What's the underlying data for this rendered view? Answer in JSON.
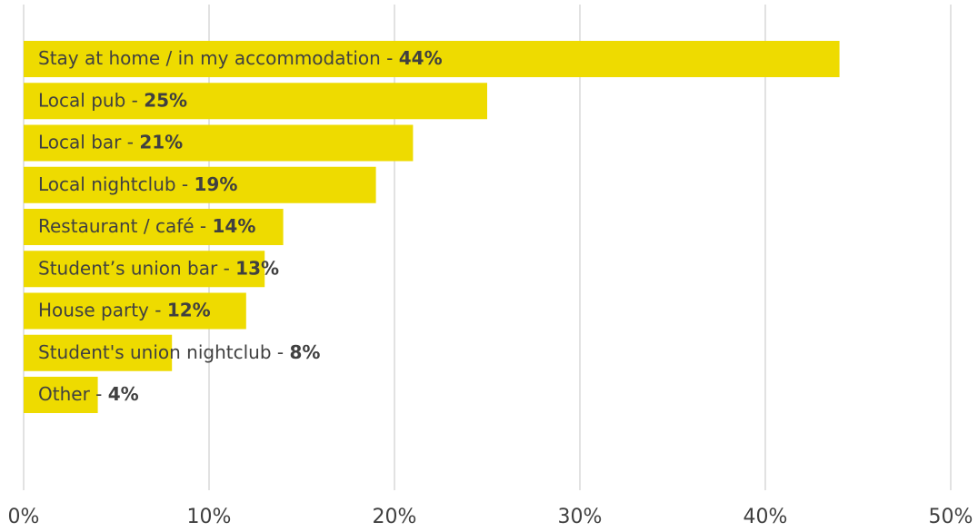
{
  "chart_data": {
    "type": "bar",
    "orientation": "horizontal",
    "categories": [
      "Stay at home / in my accommodation - ",
      "Local pub - ",
      "Local bar - ",
      "Local nightclub - ",
      "Restaurant / café - ",
      "Student’s union bar - ",
      "House party - ",
      "Student's union nightclub  - ",
      "Other - "
    ],
    "values": [
      44,
      25,
      21,
      19,
      14,
      13,
      12,
      8,
      4
    ],
    "value_labels": [
      "44%",
      "25%",
      "21%",
      "19%",
      "14%",
      "13%",
      "12%",
      "8%",
      "4%"
    ],
    "color": "#eedb00",
    "xlim": [
      0,
      50
    ],
    "xticks": [
      {
        "value": 0,
        "label": "0%"
      },
      {
        "value": 10,
        "label": "10%"
      },
      {
        "value": 20,
        "label": "20%"
      },
      {
        "value": 30,
        "label": "30%"
      },
      {
        "value": 40,
        "label": "40%"
      },
      {
        "value": 50,
        "label": "50%"
      }
    ],
    "grid": true
  }
}
